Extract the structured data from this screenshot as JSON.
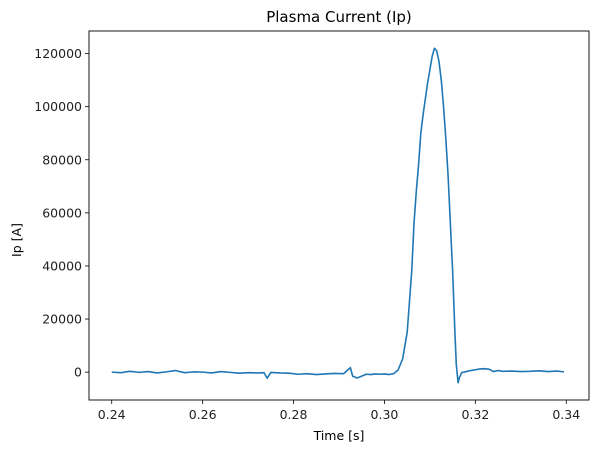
{
  "chart_data": {
    "type": "line",
    "title": "Plasma Current (Ip)",
    "xlabel": "Time [s]",
    "ylabel": "Ip [A]",
    "xlim": [
      0.235,
      0.345
    ],
    "ylim": [
      -10500,
      128500
    ],
    "xticks": [
      0.24,
      0.26,
      0.28,
      0.3,
      0.32,
      0.34
    ],
    "xtick_labels": [
      "0.24",
      "0.26",
      "0.28",
      "0.30",
      "0.32",
      "0.34"
    ],
    "yticks": [
      0,
      20000,
      40000,
      60000,
      80000,
      100000,
      120000
    ],
    "ytick_labels": [
      "0",
      "20000",
      "40000",
      "60000",
      "80000",
      "100000",
      "120000"
    ],
    "grid": false,
    "line_color": "#1f77b4",
    "series": [
      {
        "x": [
          0.24,
          0.242,
          0.244,
          0.246,
          0.248,
          0.25,
          0.252,
          0.254,
          0.256,
          0.258,
          0.26,
          0.262,
          0.264,
          0.266,
          0.268,
          0.27,
          0.272,
          0.2735,
          0.2742,
          0.275,
          0.277,
          0.279,
          0.281,
          0.283,
          0.285,
          0.287,
          0.289,
          0.291,
          0.2925,
          0.293,
          0.294,
          0.295,
          0.296,
          0.297,
          0.298,
          0.299,
          0.3,
          0.301,
          0.302,
          0.303,
          0.304,
          0.305,
          0.306,
          0.3065,
          0.307,
          0.3075,
          0.308,
          0.3085,
          0.309,
          0.3095,
          0.31,
          0.3105,
          0.311,
          0.3115,
          0.312,
          0.3125,
          0.313,
          0.3135,
          0.314,
          0.3145,
          0.315,
          0.3155,
          0.3158,
          0.3162,
          0.3165,
          0.317,
          0.318,
          0.319,
          0.32,
          0.321,
          0.322,
          0.323,
          0.324,
          0.325,
          0.326,
          0.328,
          0.33,
          0.332,
          0.334,
          0.336,
          0.338,
          0.3395
        ],
        "y": [
          0,
          -200,
          300,
          -100,
          200,
          -300,
          100,
          600,
          -200,
          100,
          0,
          -300,
          200,
          -100,
          -400,
          -200,
          -300,
          -200,
          -2300,
          -100,
          -300,
          -400,
          -800,
          -600,
          -900,
          -700,
          -500,
          -600,
          1700,
          -1500,
          -2200,
          -1500,
          -800,
          -900,
          -700,
          -800,
          -700,
          -900,
          -600,
          800,
          5000,
          15000,
          38000,
          56000,
          68000,
          78000,
          90000,
          97000,
          103000,
          109000,
          114000,
          119000,
          122000,
          121000,
          117000,
          110000,
          100000,
          88000,
          74000,
          56000,
          38000,
          15000,
          3000,
          -4000,
          -2000,
          -200,
          200,
          600,
          900,
          1200,
          1300,
          1100,
          200,
          600,
          300,
          400,
          200,
          300,
          500,
          200,
          400,
          100
        ]
      }
    ]
  }
}
